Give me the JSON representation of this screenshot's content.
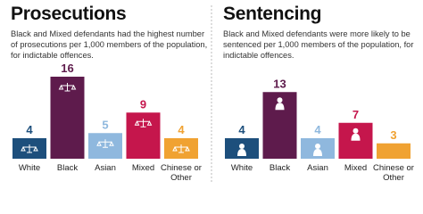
{
  "chart_data": [
    {
      "type": "bar",
      "title": "Prosecutions",
      "subtitle": "Black and Mixed defendants had the highest number of prosecutions per 1,000 members of the population, for indictable offences.",
      "categories": [
        "White",
        "Black",
        "Asian",
        "Mixed",
        "Chinese or Other"
      ],
      "values": [
        4,
        16,
        5,
        9,
        4
      ],
      "colors": [
        "#1d4f7c",
        "#5e1b4c",
        "#8fb8de",
        "#c5164c",
        "#f0a232"
      ]
    },
    {
      "type": "bar",
      "title": "Sentencing",
      "subtitle": "Black and Mixed defendants were more likely to be sentenced per 1,000 members of the population, for indictable offences.",
      "categories": [
        "White",
        "Black",
        "Asian",
        "Mixed",
        "Chinese or Other"
      ],
      "values": [
        4,
        13,
        4,
        7,
        3
      ],
      "colors": [
        "#1d4f7c",
        "#5e1b4c",
        "#8fb8de",
        "#c5164c",
        "#f0a232"
      ]
    }
  ]
}
